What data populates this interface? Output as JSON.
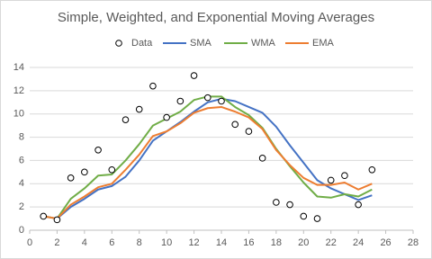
{
  "chart_data": {
    "type": "line",
    "title": "Simple, Weighted, and Exponential Moving Averages",
    "x": [
      1,
      2,
      3,
      4,
      5,
      6,
      7,
      8,
      9,
      10,
      11,
      12,
      13,
      14,
      15,
      16,
      17,
      18,
      19,
      20,
      21,
      22,
      23,
      24,
      25
    ],
    "series": [
      {
        "name": "Data",
        "type": "scatter",
        "color": "#000000",
        "values": [
          1.2,
          0.9,
          4.5,
          5.0,
          6.9,
          5.2,
          9.5,
          10.4,
          12.4,
          9.7,
          11.1,
          13.3,
          11.4,
          11.1,
          9.1,
          8.5,
          6.2,
          2.4,
          2.2,
          1.2,
          1.0,
          4.3,
          4.7,
          2.2,
          5.2
        ]
      },
      {
        "name": "SMA",
        "type": "line",
        "color": "#4472c4",
        "values": [
          1.2,
          1.0,
          2.0,
          2.7,
          3.5,
          3.8,
          4.6,
          6.0,
          7.7,
          8.5,
          9.3,
          10.2,
          11.0,
          11.3,
          11.1,
          10.6,
          10.1,
          8.9,
          7.3,
          5.8,
          4.3,
          3.6,
          3.1,
          2.6,
          3.0
        ]
      },
      {
        "name": "WMA",
        "type": "line",
        "color": "#70ad47",
        "values": [
          1.2,
          1.0,
          2.7,
          3.6,
          4.7,
          4.8,
          6.0,
          7.4,
          9.0,
          9.6,
          10.2,
          11.2,
          11.5,
          11.5,
          10.6,
          9.9,
          8.8,
          7.0,
          5.5,
          4.1,
          2.9,
          2.8,
          3.1,
          2.9,
          3.5
        ]
      },
      {
        "name": "EMA",
        "type": "line",
        "color": "#ed7d31",
        "values": [
          1.2,
          1.0,
          2.2,
          2.9,
          3.7,
          4.0,
          5.2,
          6.5,
          8.1,
          8.5,
          9.2,
          10.1,
          10.5,
          10.6,
          10.2,
          9.7,
          8.7,
          6.9,
          5.6,
          4.5,
          3.9,
          3.9,
          4.1,
          3.5,
          4.0
        ]
      }
    ],
    "xlim": [
      0,
      28
    ],
    "xticks": [
      0,
      2,
      4,
      6,
      8,
      10,
      12,
      14,
      16,
      18,
      20,
      22,
      24,
      26,
      28
    ],
    "ylim": [
      0,
      14
    ],
    "yticks": [
      0,
      2,
      4,
      6,
      8,
      10,
      12,
      14
    ],
    "grid": true,
    "legend": "top"
  }
}
